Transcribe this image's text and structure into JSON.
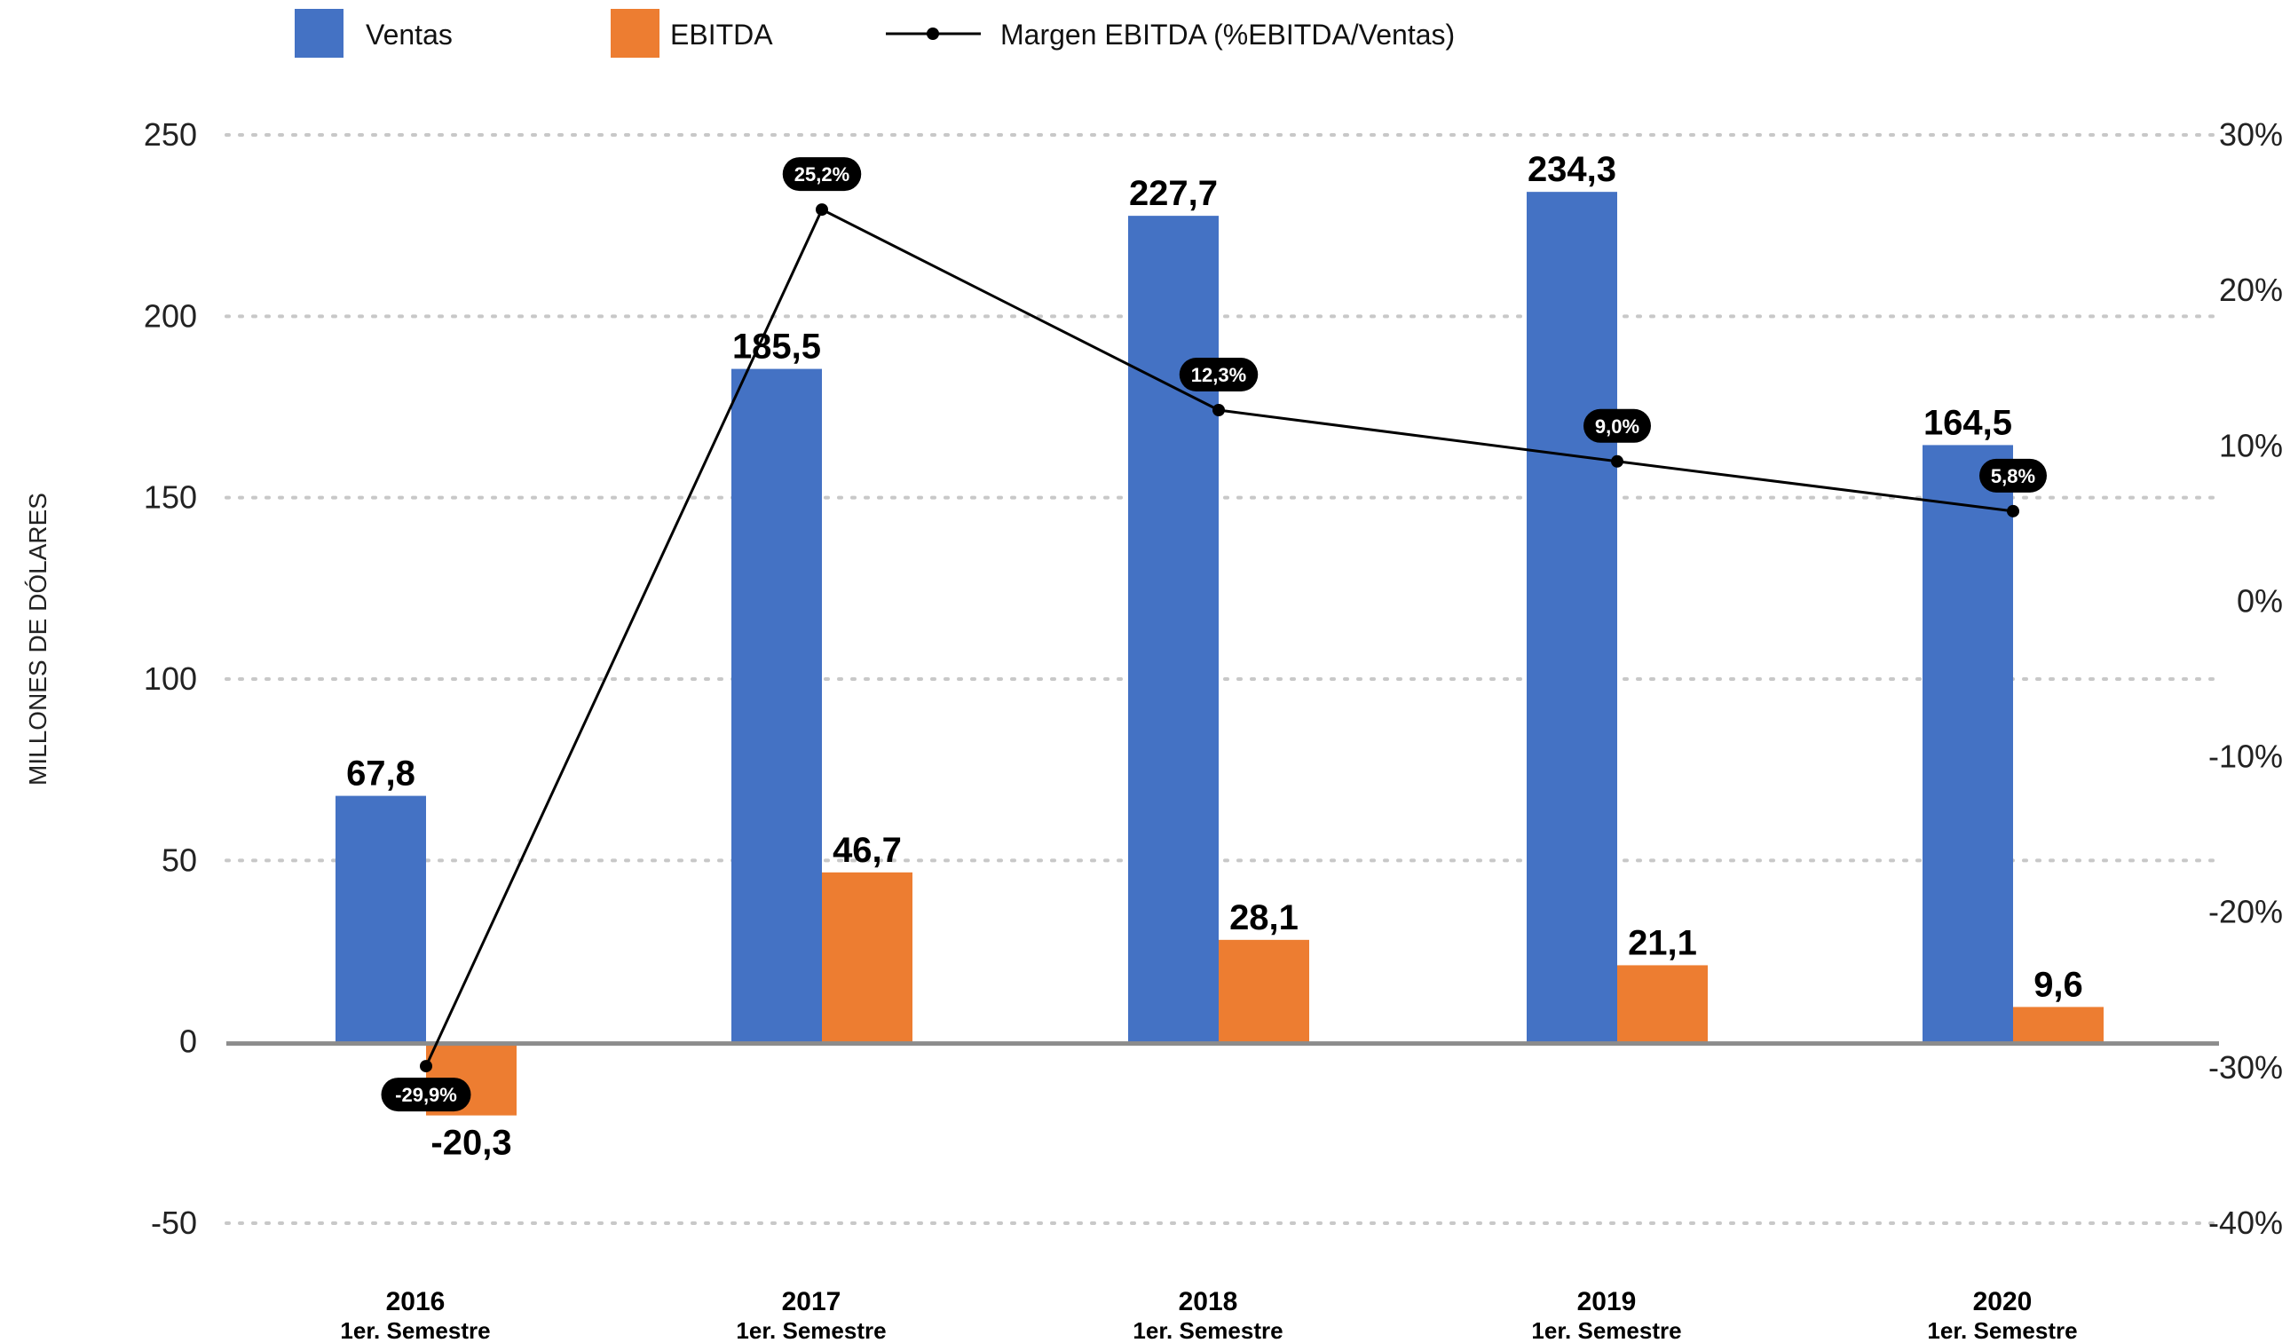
{
  "chart_data": {
    "type": "bar",
    "categories": [
      {
        "year": "2016",
        "sub": "1er. Semestre"
      },
      {
        "year": "2017",
        "sub": "1er. Semestre"
      },
      {
        "year": "2018",
        "sub": "1er. Semestre"
      },
      {
        "year": "2019",
        "sub": "1er. Semestre"
      },
      {
        "year": "2020",
        "sub": "1er. Semestre"
      }
    ],
    "series": [
      {
        "name": "Ventas",
        "kind": "bar",
        "color": "#4472C4",
        "values": [
          67.8,
          185.5,
          227.7,
          234.3,
          164.5
        ],
        "labels": [
          "67,8",
          "185,5",
          "227,7",
          "234,3",
          "164,5"
        ]
      },
      {
        "name": "EBITDA",
        "kind": "bar",
        "color": "#ED7D31",
        "values": [
          -20.3,
          46.7,
          28.1,
          21.1,
          9.6
        ],
        "labels": [
          "-20,3",
          "46,7",
          "28,1",
          "21,1",
          "9,6"
        ]
      },
      {
        "name": "Margen EBITDA (%EBITDA/Ventas)",
        "kind": "line",
        "color": "#000000",
        "axis": "right",
        "values": [
          -29.9,
          25.2,
          12.3,
          9.0,
          5.8
        ],
        "labels": [
          "-29,9%",
          "25,2%",
          "12,3%",
          "9,0%",
          "5,8%"
        ]
      }
    ],
    "ylabel": "MILLONES DE DÓLARES",
    "ylim": [
      -50,
      250
    ],
    "yticks": [
      250,
      200,
      150,
      100,
      50,
      0,
      -50
    ],
    "ytick_labels": [
      "250",
      "200",
      "150",
      "100",
      "50",
      "0",
      "-50"
    ],
    "y2lim": [
      -40,
      30
    ],
    "y2ticks": [
      30,
      20,
      10,
      0,
      -10,
      -20,
      -30,
      -40
    ],
    "y2tick_labels": [
      "30%",
      "20%",
      "10%",
      "0%",
      "-10%",
      "-20%",
      "-30%",
      "-40%"
    ],
    "grid": "horizontal dotted",
    "legend_position": "top-left"
  }
}
